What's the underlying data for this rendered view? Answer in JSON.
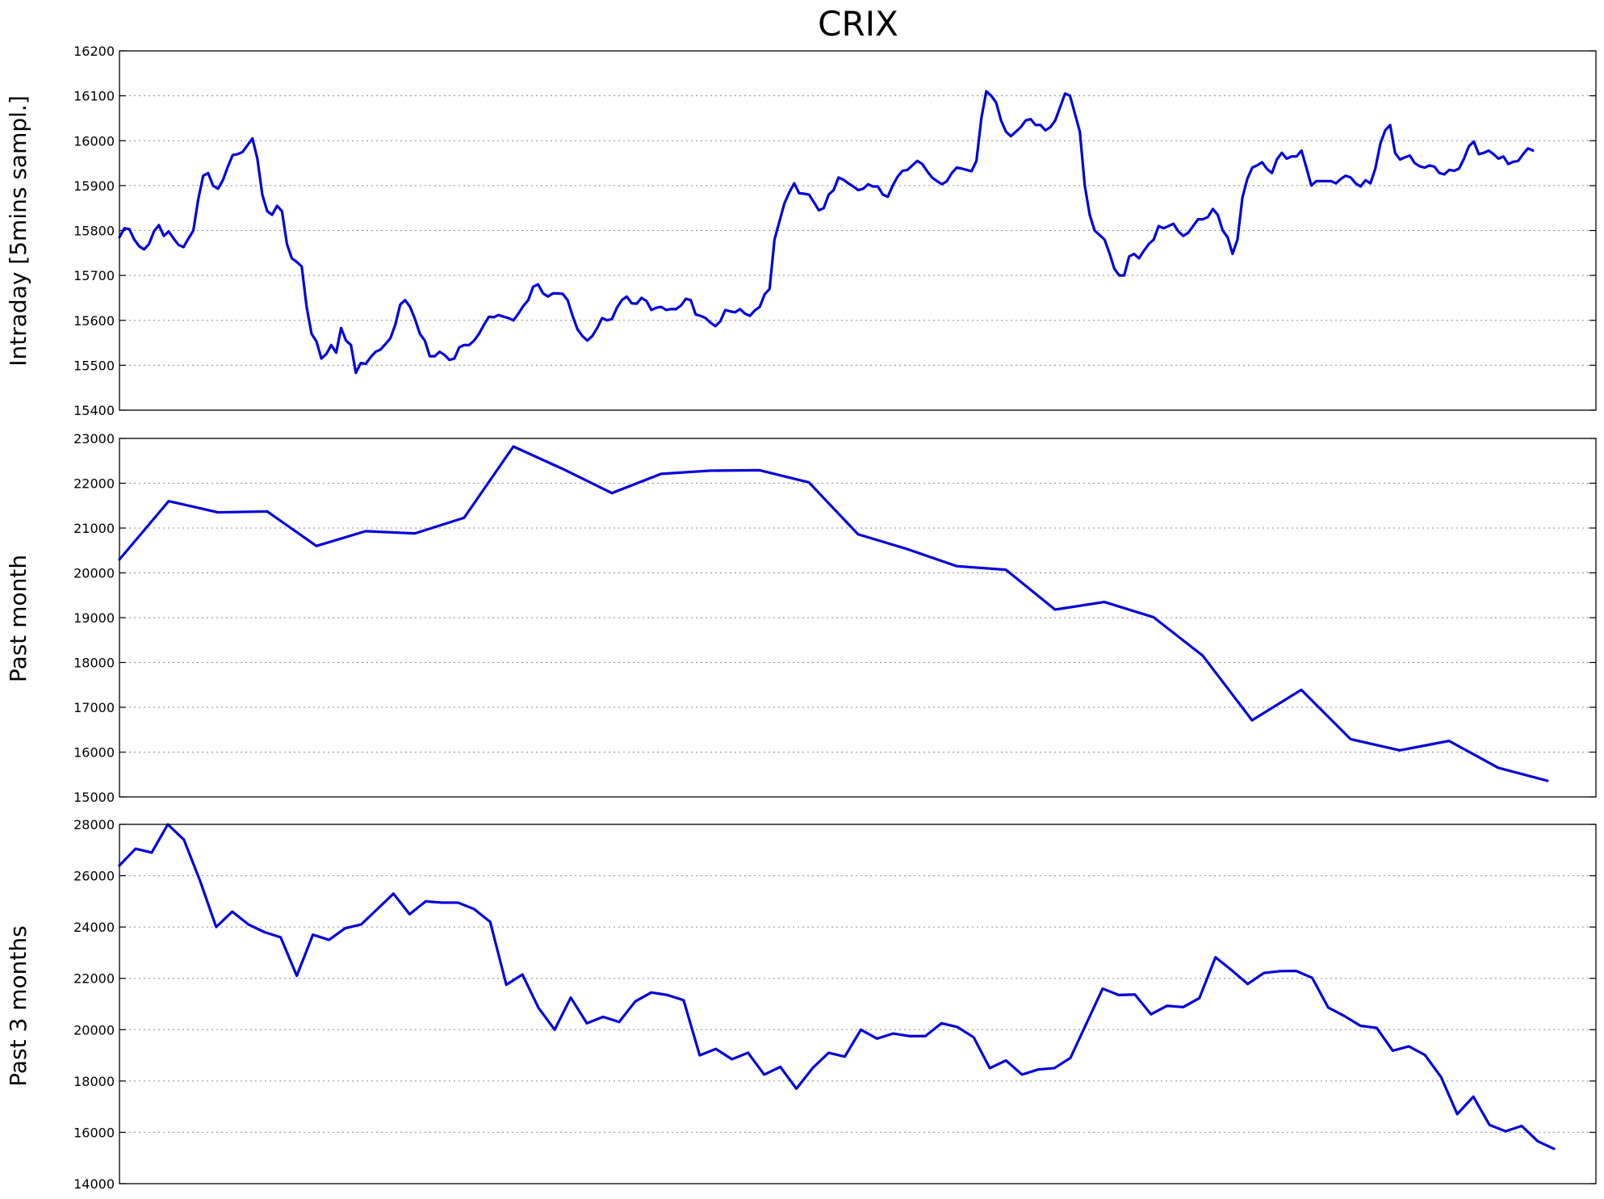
{
  "title": "CRIX",
  "chart_data": [
    {
      "type": "line",
      "ylabel": "Intraday [5mins sampl.]",
      "ylim": [
        15400,
        16200
      ],
      "yticks": [
        15400,
        15500,
        15600,
        15700,
        15800,
        15900,
        16000,
        16100,
        16200
      ],
      "grid": "horizontal dotted",
      "series": [
        {
          "color": "#0000d8",
          "values": [
            15785,
            15805,
            15803,
            15780,
            15765,
            15758,
            15770,
            15798,
            15812,
            15788,
            15798,
            15782,
            15768,
            15763,
            15782,
            15800,
            15870,
            15922,
            15928,
            15900,
            15893,
            15912,
            15942,
            15968,
            15970,
            15975,
            15990,
            16005,
            15960,
            15880,
            15843,
            15835,
            15855,
            15843,
            15770,
            15738,
            15730,
            15720,
            15630,
            15570,
            15553,
            15515,
            15525,
            15545,
            15528,
            15583,
            15555,
            15545,
            15483,
            15505,
            15503,
            15518,
            15530,
            15535,
            15547,
            15560,
            15590,
            15635,
            15645,
            15630,
            15603,
            15570,
            15555,
            15520,
            15520,
            15530,
            15523,
            15512,
            15515,
            15540,
            15545,
            15545,
            15555,
            15570,
            15590,
            15608,
            15607,
            15612,
            15608,
            15605,
            15600,
            15615,
            15632,
            15645,
            15675,
            15680,
            15660,
            15653,
            15660,
            15660,
            15659,
            15645,
            15610,
            15580,
            15565,
            15555,
            15565,
            15583,
            15605,
            15600,
            15603,
            15628,
            15645,
            15653,
            15638,
            15637,
            15650,
            15643,
            15623,
            15628,
            15630,
            15623,
            15625,
            15625,
            15633,
            15648,
            15645,
            15613,
            15610,
            15605,
            15595,
            15587,
            15598,
            15623,
            15620,
            15618,
            15625,
            15615,
            15610,
            15622,
            15630,
            15658,
            15670,
            15780,
            15820,
            15860,
            15885,
            15905,
            15883,
            15882,
            15880,
            15863,
            15845,
            15850,
            15880,
            15890,
            15918,
            15913,
            15905,
            15898,
            15890,
            15893,
            15903,
            15898,
            15898,
            15880,
            15875,
            15900,
            15920,
            15933,
            15935,
            15945,
            15955,
            15948,
            15932,
            15918,
            15910,
            15903,
            15910,
            15928,
            15940,
            15938,
            15935,
            15932,
            15955,
            16050,
            16110,
            16100,
            16085,
            16045,
            16020,
            16010,
            16020,
            16030,
            16045,
            16048,
            16035,
            16035,
            16023,
            16030,
            16045,
            16075,
            16105,
            16100,
            16060,
            16020,
            15900,
            15835,
            15800,
            15790,
            15780,
            15750,
            15715,
            15700,
            15700,
            15742,
            15748,
            15738,
            15755,
            15770,
            15780,
            15810,
            15805,
            15810,
            15815,
            15798,
            15788,
            15795,
            15810,
            15825,
            15825,
            15830,
            15848,
            15835,
            15800,
            15785,
            15748,
            15780,
            15873,
            15915,
            15940,
            15945,
            15952,
            15937,
            15928,
            15958,
            15973,
            15960,
            15965,
            15965,
            15978,
            15940,
            15900,
            15910,
            15910,
            15910,
            15910,
            15905,
            15915,
            15922,
            15918,
            15905,
            15898,
            15912,
            15905,
            15938,
            15993,
            16023,
            16035,
            15973,
            15958,
            15963,
            15967,
            15950,
            15943,
            15940,
            15945,
            15942,
            15928,
            15925,
            15935,
            15933,
            15938,
            15960,
            15988,
            15998,
            15970,
            15973,
            15978,
            15970,
            15960,
            15965,
            15948,
            15953,
            15955,
            15970,
            15983,
            15978
          ]
        }
      ]
    },
    {
      "type": "line",
      "ylabel": "Past month",
      "ylim": [
        15000,
        23000
      ],
      "yticks": [
        15000,
        16000,
        17000,
        18000,
        19000,
        20000,
        21000,
        22000,
        23000
      ],
      "grid": "horizontal dotted",
      "series": [
        {
          "color": "#0000d8",
          "values": [
            20300,
            21600,
            21350,
            21370,
            20600,
            20930,
            20880,
            21230,
            22820,
            22320,
            21780,
            22210,
            22280,
            22290,
            22020,
            20860,
            20530,
            20150,
            20070,
            19180,
            19350,
            19010,
            18150,
            16710,
            17390,
            16290,
            16040,
            16250,
            15650,
            15360
          ]
        }
      ]
    },
    {
      "type": "line",
      "ylabel": "Past 3 months",
      "ylim": [
        14000,
        28000
      ],
      "yticks": [
        14000,
        16000,
        18000,
        20000,
        22000,
        24000,
        26000,
        28000
      ],
      "grid": "horizontal dotted",
      "series": [
        {
          "color": "#0000d8",
          "values": [
            26400,
            27050,
            26900,
            28000,
            27400,
            25800,
            24000,
            24600,
            24100,
            23800,
            23600,
            22100,
            23700,
            23500,
            23950,
            24100,
            24700,
            25300,
            24500,
            25000,
            24950,
            24950,
            24700,
            24200,
            21750,
            22150,
            20850,
            20000,
            21250,
            20250,
            20500,
            20300,
            21100,
            21450,
            21350,
            21150,
            19000,
            19250,
            18850,
            19100,
            18250,
            18550,
            17700,
            18500,
            19100,
            18950,
            20000,
            19650,
            19850,
            19750,
            19750,
            20250,
            20100,
            19700,
            18500,
            18800,
            18250,
            18450,
            18500,
            18900,
            20250,
            21600,
            21350,
            21370,
            20600,
            20930,
            20880,
            21230,
            22820,
            22320,
            21780,
            22210,
            22280,
            22290,
            22020,
            20860,
            20530,
            20150,
            20070,
            19180,
            19350,
            19010,
            18150,
            16710,
            17390,
            16290,
            16040,
            16250,
            15650,
            15360
          ]
        }
      ]
    }
  ]
}
